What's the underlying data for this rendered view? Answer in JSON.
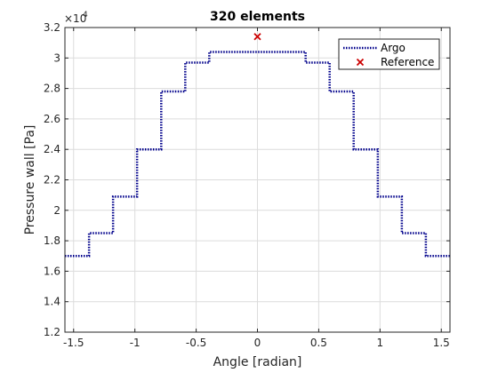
{
  "chart_data": {
    "type": "line",
    "title": "320 elements",
    "xlabel": "Angle [radian]",
    "ylabel": "Pressure wall [Pa]",
    "y_multiplier_base": "×10",
    "y_multiplier_exponent": "4",
    "xlim": [
      -1.5708,
      1.5708
    ],
    "ylim": [
      1.2,
      3.2
    ],
    "xticks": [
      -1.5,
      -1,
      -0.5,
      0,
      0.5,
      1,
      1.5
    ],
    "xtick_labels": [
      "-1.5",
      "-1",
      "-0.5",
      "0",
      "0.5",
      "1",
      "1.5"
    ],
    "yticks": [
      1.2,
      1.4,
      1.6,
      1.8,
      2,
      2.2,
      2.4,
      2.6,
      2.8,
      3,
      3.2
    ],
    "ytick_labels": [
      "1.2",
      "1.4",
      "1.6",
      "1.8",
      "2",
      "2.2",
      "2.4",
      "2.6",
      "2.8",
      "3",
      "3.2"
    ],
    "grid": true,
    "legend_position": "top-right",
    "series": [
      {
        "name": "Argo",
        "style": "dotted-step",
        "color": "#00008b",
        "x": [
          -1.5708,
          -1.374,
          -1.374,
          -1.178,
          -1.178,
          -0.982,
          -0.982,
          -0.785,
          -0.785,
          -0.589,
          -0.589,
          -0.393,
          -0.393,
          0.393,
          0.393,
          0.589,
          0.589,
          0.785,
          0.785,
          0.982,
          0.982,
          1.178,
          1.178,
          1.374,
          1.374,
          1.5708
        ],
        "y": [
          1.7,
          1.7,
          1.85,
          1.85,
          2.09,
          2.09,
          2.4,
          2.4,
          2.78,
          2.78,
          2.97,
          2.97,
          3.04,
          3.04,
          2.97,
          2.97,
          2.78,
          2.78,
          2.4,
          2.4,
          2.09,
          2.09,
          1.85,
          1.85,
          1.7,
          1.7
        ]
      },
      {
        "name": "Reference",
        "style": "marker-x",
        "color": "#cc0000",
        "x": [
          0
        ],
        "y": [
          3.14
        ]
      }
    ]
  }
}
